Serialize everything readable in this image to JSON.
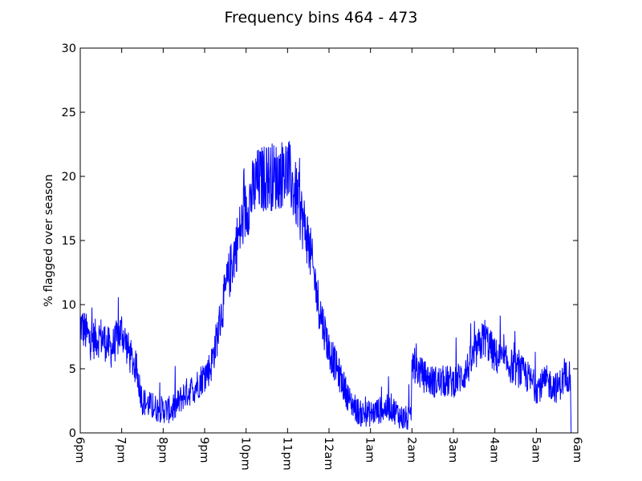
{
  "chart_data": {
    "type": "line",
    "title": "Frequency bins 464 - 473",
    "xlabel": "",
    "ylabel": "% flagged over season",
    "ylim": [
      0,
      30
    ],
    "yticks": [
      "0",
      "5",
      "10",
      "15",
      "20",
      "25",
      "30"
    ],
    "xlim": [
      0,
      12
    ],
    "xticks": [
      "6pm",
      "7pm",
      "8pm",
      "9pm",
      "10pm",
      "11pm",
      "12am",
      "1am",
      "2am",
      "3am",
      "4am",
      "5am",
      "6am"
    ],
    "grid": false,
    "series": [
      {
        "color": "#0000ff",
        "x_hours_after_6pm": [
          0,
          0.25,
          0.5,
          0.75,
          1.0,
          1.2,
          1.35,
          1.5,
          1.75,
          2.0,
          2.25,
          2.5,
          2.75,
          3.0,
          3.15,
          3.3,
          3.5,
          3.75,
          4.0,
          4.25,
          4.5,
          4.75,
          5.0,
          5.25,
          5.5,
          5.75,
          6.0,
          6.25,
          6.5,
          6.75,
          7.0,
          7.25,
          7.5,
          7.75,
          7.98,
          8.0,
          8.25,
          8.5,
          8.75,
          9.0,
          9.25,
          9.5,
          9.75,
          10.0,
          10.25,
          10.5,
          10.75,
          11.0,
          11.25,
          11.5,
          11.75,
          11.82,
          11.84
        ],
        "y_percent_flagged": [
          8.5,
          7.2,
          7.5,
          6.5,
          8.0,
          6.0,
          5.0,
          2.5,
          2.0,
          1.8,
          1.8,
          3.0,
          3.5,
          4.5,
          5.2,
          7.5,
          11.0,
          14.5,
          17.5,
          19.5,
          20.0,
          20.0,
          20.5,
          18.0,
          15.0,
          10.0,
          6.5,
          4.5,
          2.5,
          1.5,
          1.5,
          1.8,
          2.0,
          1.2,
          1.0,
          5.5,
          4.5,
          4.0,
          4.0,
          4.0,
          4.5,
          6.0,
          7.5,
          6.0,
          5.5,
          5.0,
          4.5,
          3.5,
          4.0,
          3.5,
          4.5,
          4.5,
          0.0
        ]
      }
    ]
  }
}
